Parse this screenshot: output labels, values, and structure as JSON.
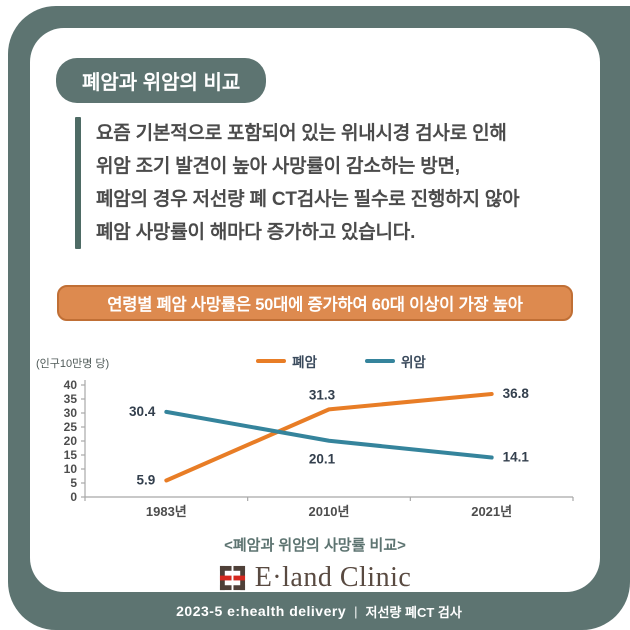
{
  "title": "폐암과 위암의 비교",
  "body": {
    "lines": [
      "요즘 기본적으로 포함되어 있는 위내시경 검사로 인해",
      "위암 조기 발견이 높아 사망률이 감소하는 방면,",
      "폐암의 경우 저선량 폐 CT검사는 필수로 진행하지 않아",
      "폐암 사망률이 해마다 증가하고 있습니다."
    ]
  },
  "banner": "연령별 폐암 사망률은 50대에 증가하여 60대 이상이 가장 높아",
  "chart_data": {
    "type": "line",
    "title": "",
    "xlabel": "",
    "ylabel": "(인구10만명 당)",
    "unit_label": "(인구10만명 당)",
    "categories": [
      "1983년",
      "2010년",
      "2021년"
    ],
    "series": [
      {
        "name": "폐암",
        "values": [
          5.9,
          31.3,
          36.8
        ],
        "color": "#e87d26",
        "label_anchors": [
          "left",
          "top",
          "right"
        ]
      },
      {
        "name": "위암",
        "values": [
          30.4,
          20.1,
          14.1
        ],
        "color": "#35849c",
        "label_anchors": [
          "left",
          "bottom",
          "right"
        ]
      }
    ],
    "ylim": [
      0,
      40
    ],
    "ytick_step": 5,
    "grid": false,
    "legend_position": "top-center"
  },
  "caption": "<폐암과 위암의 사망률 비교>",
  "logo": {
    "text": "E·land Clinic"
  },
  "footer": {
    "left": "2023-5 e:health delivery",
    "sep": "|",
    "right": "저선량 폐CT 검사"
  },
  "colors": {
    "frame_teal": "#5d7471",
    "bar_teal": "#4e6b65",
    "banner_orange": "#dd8a4f",
    "banner_border": "#c06f35",
    "series_orange": "#e87d26",
    "series_teal": "#35849c",
    "logo_brown": "#594a41",
    "logo_red": "#d5281e"
  }
}
